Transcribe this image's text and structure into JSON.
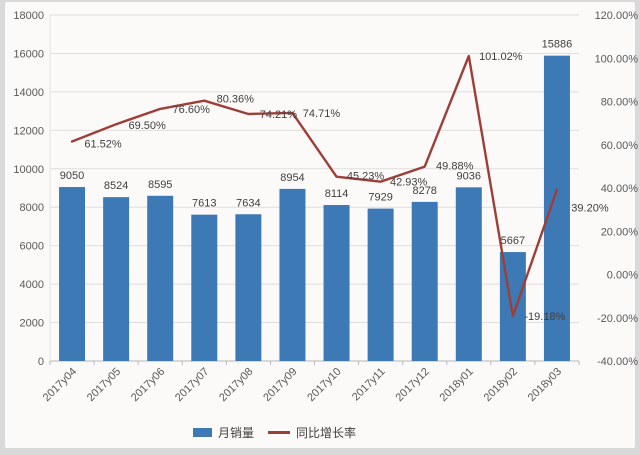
{
  "chart_data": {
    "type": "combo_bar_line",
    "title": "",
    "xlabel": "",
    "ylabel": "",
    "grid": true,
    "legend_position": "bottom",
    "categories": [
      "2017y04",
      "2017y05",
      "2017y06",
      "2017y07",
      "2017y08",
      "2017y09",
      "2017y10",
      "2017y11",
      "2017y12",
      "2018y01",
      "2018y02",
      "2018y03"
    ],
    "series": [
      {
        "name": "月销量",
        "type": "bar",
        "axis": "left",
        "color": "#3d7ab5",
        "values": [
          9050,
          8524,
          8595,
          7613,
          7634,
          8954,
          8114,
          7929,
          8278,
          9036,
          5667,
          15886
        ],
        "data_labels": [
          "9050",
          "8524",
          "8595",
          "7613",
          "7634",
          "8954",
          "8114",
          "7929",
          "8278",
          "9036",
          "5667",
          "15886"
        ]
      },
      {
        "name": "同比增长率",
        "type": "line",
        "axis": "right",
        "color": "#9e3e38",
        "values": [
          61.52,
          69.5,
          76.6,
          80.36,
          74.21,
          74.71,
          45.23,
          42.93,
          49.88,
          101.02,
          -19.18,
          39.2
        ],
        "data_labels": [
          "61.52%",
          "69.50%",
          "76.60%",
          "80.36%",
          "74.21%",
          "74.71%",
          "45.23%",
          "42.93%",
          "49.88%",
          "101.02%",
          "-19.18%",
          "39.20%"
        ]
      }
    ],
    "left_axis": {
      "min": 0,
      "max": 18000,
      "step": 2000,
      "tick_labels": [
        "0",
        "2000",
        "4000",
        "6000",
        "8000",
        "10000",
        "12000",
        "14000",
        "16000",
        "18000"
      ]
    },
    "right_axis": {
      "min": -40,
      "max": 120,
      "step": 20,
      "tick_labels": [
        "-40.00%",
        "-20.00%",
        "0.00%",
        "20.00%",
        "40.00%",
        "60.00%",
        "80.00%",
        "100.00%",
        "120.00%"
      ]
    }
  },
  "legend": {
    "items": [
      {
        "label": "月销量",
        "swatch": "bar",
        "color": "#3d7ab5"
      },
      {
        "label": "同比增长率",
        "swatch": "line",
        "color": "#9e3e38"
      }
    ]
  },
  "colors": {
    "bar": "#3d7ab5",
    "line": "#9e3e38",
    "grid": "#dedede",
    "axis_line": "#b7b7b7",
    "axis_text": "#595959",
    "label_text": "#404040",
    "background": "#fbfaf8",
    "frame": "#d9d9d9"
  }
}
